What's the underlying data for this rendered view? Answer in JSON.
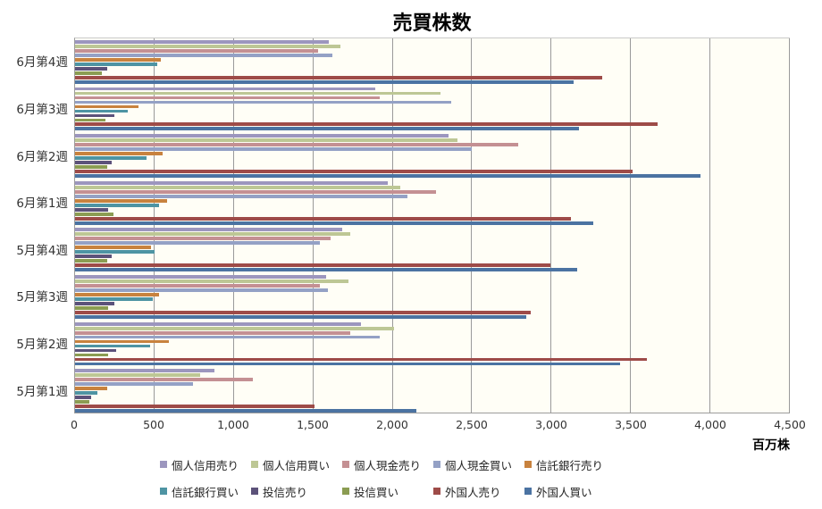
{
  "chart_data": {
    "type": "bar",
    "orientation": "horizontal",
    "title": "売買株数",
    "xlabel": "百万株",
    "xlim": [
      0,
      4500
    ],
    "x_tick_step": 500,
    "x_ticks": [
      "0",
      "500",
      "1,000",
      "1,500",
      "2,000",
      "2,500",
      "3,000",
      "3,500",
      "4,000",
      "4,500"
    ],
    "grid": true,
    "legend_position": "bottom",
    "legend_rows": 2,
    "categories": [
      "6月第4週",
      "6月第3週",
      "6月第2週",
      "6月第1週",
      "5月第4週",
      "5月第3週",
      "5月第2週",
      "5月第1週"
    ],
    "series": [
      {
        "name": "個人信用売り",
        "color": "#9c96be",
        "values": [
          1600,
          1890,
          2350,
          1970,
          1680,
          1580,
          1800,
          880
        ]
      },
      {
        "name": "個人信用買い",
        "color": "#bdc795",
        "values": [
          1670,
          2300,
          2410,
          2050,
          1730,
          1720,
          2010,
          790
        ]
      },
      {
        "name": "個人現金売り",
        "color": "#c49093",
        "values": [
          1530,
          1920,
          2790,
          2270,
          1610,
          1540,
          1730,
          1120
        ]
      },
      {
        "name": "個人現金買い",
        "color": "#94a1c5",
        "values": [
          1620,
          2370,
          2500,
          2090,
          1540,
          1590,
          1920,
          740
        ]
      },
      {
        "name": "信託銀行売り",
        "color": "#c8823e",
        "values": [
          540,
          400,
          550,
          580,
          480,
          530,
          590,
          200
        ]
      },
      {
        "name": "信託銀行買い",
        "color": "#4e94a3",
        "values": [
          520,
          330,
          450,
          530,
          500,
          490,
          470,
          140
        ]
      },
      {
        "name": "投信売り",
        "color": "#5c527a",
        "values": [
          200,
          250,
          230,
          210,
          230,
          250,
          260,
          100
        ]
      },
      {
        "name": "投信買い",
        "color": "#8b9c52",
        "values": [
          170,
          190,
          200,
          240,
          200,
          210,
          210,
          90
        ]
      },
      {
        "name": "外国人売り",
        "color": "#9e4b48",
        "values": [
          3320,
          3670,
          3510,
          3120,
          2990,
          2870,
          3600,
          1510
        ]
      },
      {
        "name": "外国人買い",
        "color": "#4b73a2",
        "values": [
          3140,
          3170,
          3940,
          3260,
          3160,
          2840,
          3430,
          2150
        ]
      }
    ],
    "colors": {
      "plot_background": "#fffef6",
      "chart_background": "#ffffff",
      "gridline": "#9a9a9a",
      "axis_line": "#9c9c9c",
      "tick_text": "#333333",
      "title_text": "#000000"
    }
  }
}
